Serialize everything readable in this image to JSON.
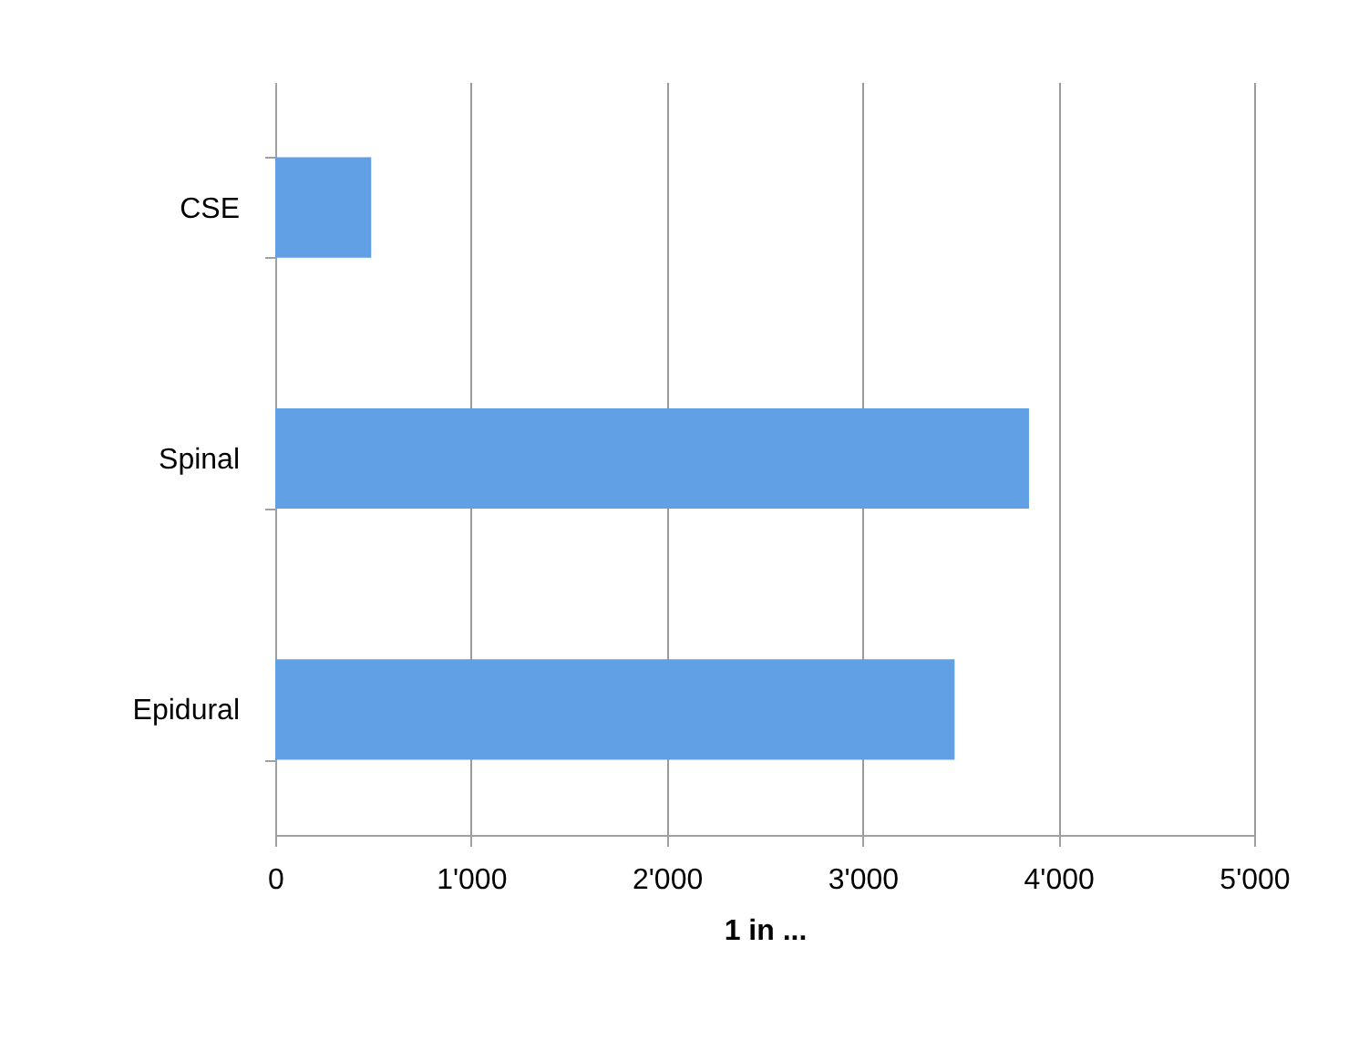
{
  "chart_data": {
    "type": "bar",
    "orientation": "horizontal",
    "xlabel": "1 in ...",
    "categories": [
      "CSE",
      "Spinal",
      "Epidural"
    ],
    "values": [
      490,
      3850,
      3470
    ],
    "color": "#62a0e6",
    "xlim": [
      0,
      5000
    ],
    "xticks": [
      0,
      {
        "value": 1000,
        "label": "1'000"
      },
      {
        "value": 2000,
        "label": "2'000"
      },
      {
        "value": 3000,
        "label": "3'000"
      },
      {
        "value": 4000,
        "label": "4'000"
      },
      {
        "value": 5000,
        "label": "5'000"
      }
    ],
    "grid": "x"
  }
}
